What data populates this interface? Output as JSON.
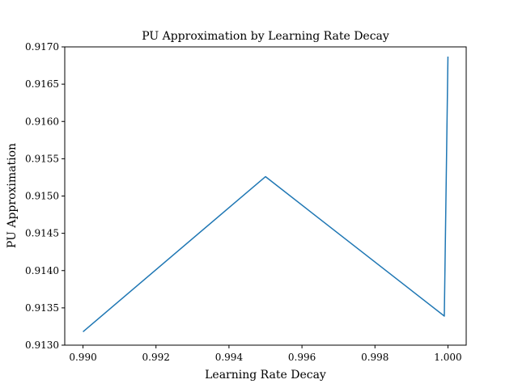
{
  "chart_data": {
    "type": "line",
    "title": "PU Approximation by Learning Rate Decay",
    "xlabel": "Learning Rate Decay",
    "ylabel": "PU Approximation",
    "xlim": [
      0.9895,
      1.0005
    ],
    "ylim": [
      0.913,
      0.917
    ],
    "xticks": [
      "0.990",
      "0.992",
      "0.994",
      "0.996",
      "0.998",
      "1.000"
    ],
    "yticks": [
      "0.9130",
      "0.9135",
      "0.9140",
      "0.9145",
      "0.9150",
      "0.9155",
      "0.9160",
      "0.9165",
      "0.9170"
    ],
    "grid": false,
    "series": [
      {
        "color": "#1f77b4",
        "x": [
          0.99,
          0.995,
          0.9999,
          1.0
        ],
        "y": [
          0.91318,
          0.91526,
          0.91339,
          0.91687
        ]
      }
    ]
  }
}
